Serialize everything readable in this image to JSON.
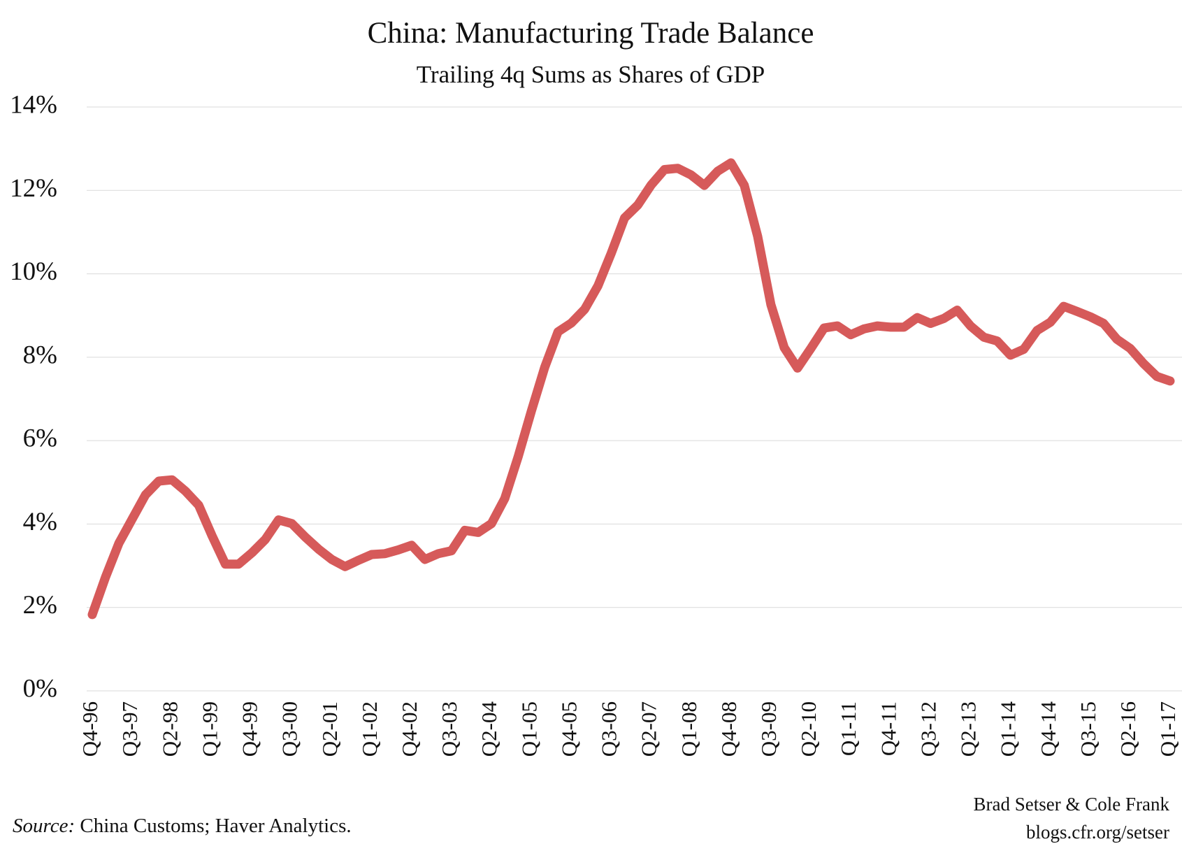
{
  "chart_data": {
    "type": "line",
    "title": "China: Manufacturing Trade Balance",
    "subtitle": "Trailing 4q Sums as Shares of GDP",
    "source_label": "Source:",
    "source": "China Customs; Haver Analytics.",
    "credits": [
      "Brad Setser & Cole Frank",
      "blogs.cfr.org/setser"
    ],
    "categories": [
      "Q4-96",
      null,
      null,
      "Q3-97",
      null,
      null,
      "Q2-98",
      null,
      null,
      "Q1-99",
      null,
      null,
      "Q4-99",
      null,
      null,
      "Q3-00",
      null,
      null,
      "Q2-01",
      null,
      null,
      "Q1-02",
      null,
      null,
      "Q4-02",
      null,
      null,
      "Q3-03",
      null,
      null,
      "Q2-04",
      null,
      null,
      "Q1-05",
      null,
      null,
      "Q4-05",
      null,
      null,
      "Q3-06",
      null,
      null,
      "Q2-07",
      null,
      null,
      "Q1-08",
      null,
      null,
      "Q4-08",
      null,
      null,
      "Q3-09",
      null,
      null,
      "Q2-10",
      null,
      null,
      "Q1-11",
      null,
      null,
      "Q4-11",
      null,
      null,
      "Q3-12",
      null,
      null,
      "Q2-13",
      null,
      null,
      "Q1-14",
      null,
      null,
      "Q4-14",
      null,
      null,
      "Q3-15",
      null,
      null,
      "Q2-16",
      null,
      null,
      "Q1-17"
    ],
    "series": [
      {
        "color": "#d65a5a",
        "values": [
          1.83,
          2.73,
          3.54,
          4.12,
          4.7,
          5.03,
          5.06,
          4.79,
          4.45,
          3.72,
          3.04,
          3.04,
          3.31,
          3.63,
          4.1,
          4.01,
          3.69,
          3.4,
          3.15,
          2.98,
          3.13,
          3.27,
          3.29,
          3.38,
          3.49,
          3.15,
          3.29,
          3.36,
          3.85,
          3.8,
          4.01,
          4.61,
          5.61,
          6.71,
          7.76,
          8.61,
          8.82,
          9.15,
          9.71,
          10.49,
          11.34,
          11.65,
          12.13,
          12.5,
          12.53,
          12.37,
          12.12,
          12.46,
          12.66,
          12.12,
          10.9,
          9.26,
          8.23,
          7.74,
          8.21,
          8.7,
          8.75,
          8.54,
          8.68,
          8.75,
          8.72,
          8.72,
          8.95,
          8.81,
          8.93,
          9.13,
          8.75,
          8.48,
          8.39,
          8.05,
          8.19,
          8.64,
          8.84,
          9.22,
          9.1,
          8.97,
          8.81,
          8.43,
          8.21,
          7.85,
          7.54,
          7.43
        ]
      }
    ],
    "ylim": [
      0,
      14
    ],
    "yticks": [
      {
        "value": 0,
        "label": "0%"
      },
      {
        "value": 2,
        "label": "2%"
      },
      {
        "value": 4,
        "label": "4%"
      },
      {
        "value": 6,
        "label": "6%"
      },
      {
        "value": 8,
        "label": "8%"
      },
      {
        "value": 10,
        "label": "10%"
      },
      {
        "value": 12,
        "label": "12%"
      },
      {
        "value": 14,
        "label": "14%"
      }
    ],
    "grid": true
  }
}
